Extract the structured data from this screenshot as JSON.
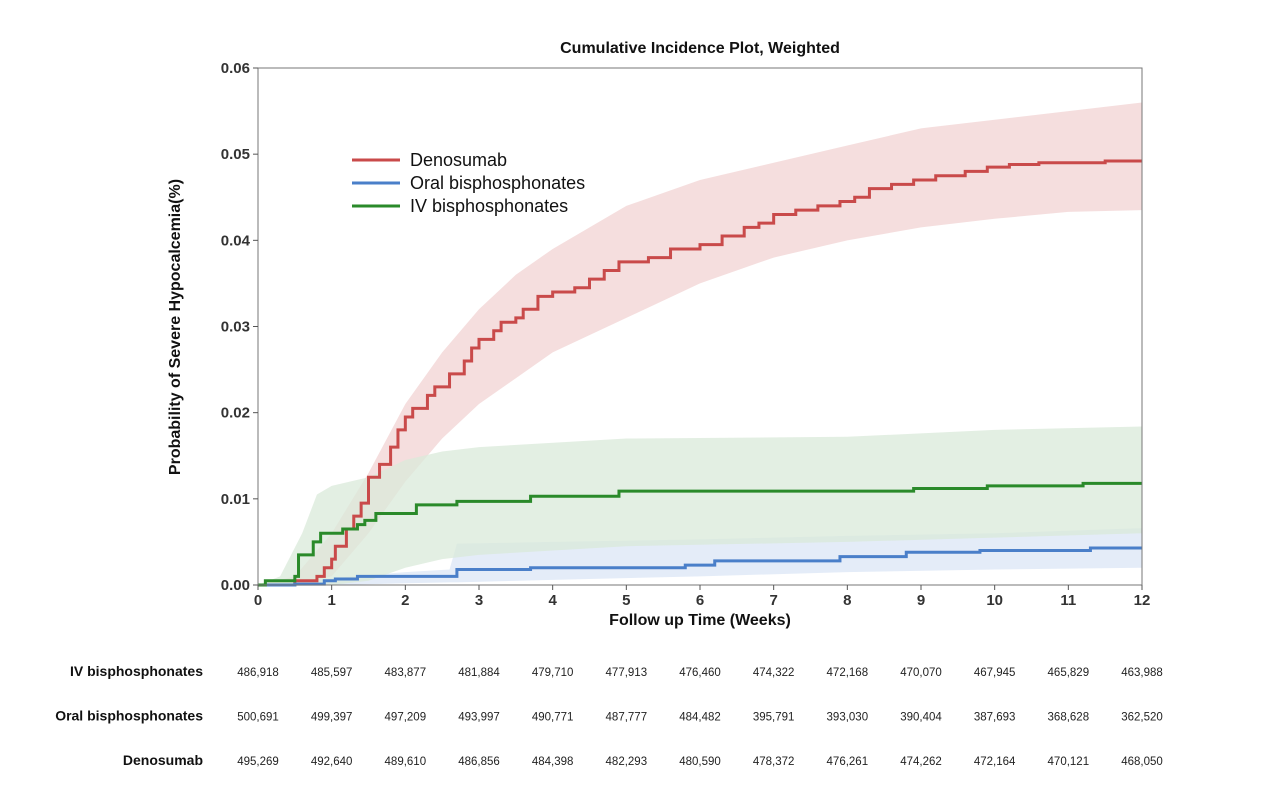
{
  "chart_data": {
    "type": "line",
    "title": "Cumulative Incidence Plot, Weighted",
    "xlabel": "Follow up Time (Weeks)",
    "ylabel": "Probability of Severe Hypocalcemia(%)",
    "xlim": [
      0,
      12
    ],
    "ylim": [
      0,
      0.06
    ],
    "x_ticks": [
      "0",
      "1",
      "2",
      "3",
      "4",
      "5",
      "6",
      "7",
      "8",
      "9",
      "10",
      "11",
      "12"
    ],
    "y_ticks": [
      "0.00",
      "0.01",
      "0.02",
      "0.03",
      "0.04",
      "0.05",
      "0.06"
    ],
    "grid": false,
    "legend_position": "top-left",
    "step": true,
    "series": [
      {
        "name": "Denosumab",
        "color": "#c94a4a",
        "band_color": "#f2d3d3",
        "x": [
          0,
          0.5,
          0.8,
          0.9,
          1.0,
          1.05,
          1.2,
          1.3,
          1.4,
          1.5,
          1.65,
          1.8,
          1.9,
          2.0,
          2.1,
          2.3,
          2.4,
          2.6,
          2.8,
          2.9,
          3.0,
          3.2,
          3.3,
          3.5,
          3.6,
          3.8,
          4.0,
          4.3,
          4.5,
          4.7,
          4.9,
          5.3,
          5.6,
          6.0,
          6.3,
          6.6,
          6.8,
          7.0,
          7.3,
          7.6,
          7.9,
          8.1,
          8.3,
          8.6,
          8.9,
          9.2,
          9.6,
          9.9,
          10.2,
          10.6,
          11.5,
          12
        ],
        "y": [
          0,
          0.0005,
          0.001,
          0.002,
          0.003,
          0.0045,
          0.0065,
          0.008,
          0.0095,
          0.0125,
          0.014,
          0.016,
          0.018,
          0.0195,
          0.0205,
          0.022,
          0.023,
          0.0245,
          0.026,
          0.0275,
          0.0285,
          0.0295,
          0.0305,
          0.031,
          0.032,
          0.0335,
          0.034,
          0.0345,
          0.0355,
          0.0365,
          0.0375,
          0.038,
          0.039,
          0.0395,
          0.0405,
          0.0415,
          0.042,
          0.043,
          0.0435,
          0.044,
          0.0445,
          0.045,
          0.046,
          0.0465,
          0.047,
          0.0475,
          0.048,
          0.0485,
          0.0488,
          0.049,
          0.0492,
          0.0492
        ],
        "ci_x": [
          0,
          0.5,
          1,
          1.5,
          2,
          2.5,
          3,
          3.5,
          4,
          5,
          6,
          7,
          8,
          9,
          10,
          11,
          12
        ],
        "ci_lower": [
          0,
          0,
          0.001,
          0.006,
          0.012,
          0.017,
          0.021,
          0.024,
          0.027,
          0.031,
          0.035,
          0.038,
          0.04,
          0.0415,
          0.0425,
          0.0433,
          0.0435
        ],
        "ci_upper": [
          0,
          0.001,
          0.006,
          0.013,
          0.021,
          0.027,
          0.032,
          0.036,
          0.039,
          0.044,
          0.047,
          0.049,
          0.051,
          0.053,
          0.054,
          0.055,
          0.056
        ]
      },
      {
        "name": "Oral bisphosphonates",
        "color": "#4a7fc9",
        "band_color": "#dbe6f5",
        "x": [
          0,
          0.5,
          0.9,
          1.05,
          1.35,
          2.7,
          3.7,
          5.8,
          6.2,
          7.9,
          8.8,
          9.8,
          11.3,
          12
        ],
        "y": [
          0,
          0.0001,
          0.0005,
          0.0007,
          0.001,
          0.0018,
          0.002,
          0.0023,
          0.0028,
          0.0033,
          0.0038,
          0.004,
          0.0043,
          0.0043
        ],
        "ci_x": [
          0,
          1,
          2,
          2.6,
          2.7,
          4,
          6,
          8,
          10,
          12
        ],
        "ci_lower": [
          0,
          0,
          0.0002,
          0.0003,
          0.0003,
          0.0006,
          0.001,
          0.0015,
          0.0018,
          0.002
        ],
        "ci_upper": [
          0,
          0.0008,
          0.0015,
          0.0018,
          0.0048,
          0.005,
          0.0053,
          0.0057,
          0.006,
          0.0066
        ]
      },
      {
        "name": "IV bisphosphonates",
        "color": "#2a8a2a",
        "band_color": "#d9ead9",
        "x": [
          0,
          0.1,
          0.5,
          0.55,
          0.75,
          0.85,
          1.05,
          1.15,
          1.35,
          1.45,
          1.6,
          2.15,
          2.7,
          3.7,
          4.9,
          8.9,
          9.9,
          11.2,
          12
        ],
        "y": [
          0,
          0.0005,
          0.001,
          0.0035,
          0.005,
          0.006,
          0.006,
          0.0065,
          0.007,
          0.0075,
          0.0083,
          0.0093,
          0.0097,
          0.0103,
          0.0109,
          0.0112,
          0.0115,
          0.0118,
          0.0118
        ],
        "ci_x": [
          0,
          0.3,
          0.6,
          0.8,
          1.0,
          1.5,
          2,
          2.5,
          3,
          5,
          8,
          10,
          12
        ],
        "ci_lower": [
          0,
          0,
          0,
          0,
          0,
          0.0005,
          0.002,
          0.003,
          0.0035,
          0.0045,
          0.005,
          0.0055,
          0.006
        ],
        "ci_upper": [
          0,
          0.001,
          0.006,
          0.0105,
          0.0115,
          0.0125,
          0.0145,
          0.0155,
          0.016,
          0.017,
          0.0172,
          0.018,
          0.0184
        ]
      }
    ],
    "risk_table": {
      "rows": [
        {
          "label": "IV bisphosphonates",
          "values": [
            "486,918",
            "485,597",
            "483,877",
            "481,884",
            "479,710",
            "477,913",
            "476,460",
            "474,322",
            "472,168",
            "470,070",
            "467,945",
            "465,829",
            "463,988"
          ]
        },
        {
          "label": "Oral bisphosphonates",
          "values": [
            "500,691",
            "499,397",
            "497,209",
            "493,997",
            "490,771",
            "487,777",
            "484,482",
            "395,791",
            "393,030",
            "390,404",
            "387,693",
            "368,628",
            "362,520"
          ]
        },
        {
          "label": "Denosumab",
          "values": [
            "495,269",
            "492,640",
            "489,610",
            "486,856",
            "484,398",
            "482,293",
            "480,590",
            "478,372",
            "476,261",
            "474,262",
            "472,164",
            "470,121",
            "468,050"
          ]
        }
      ]
    }
  }
}
